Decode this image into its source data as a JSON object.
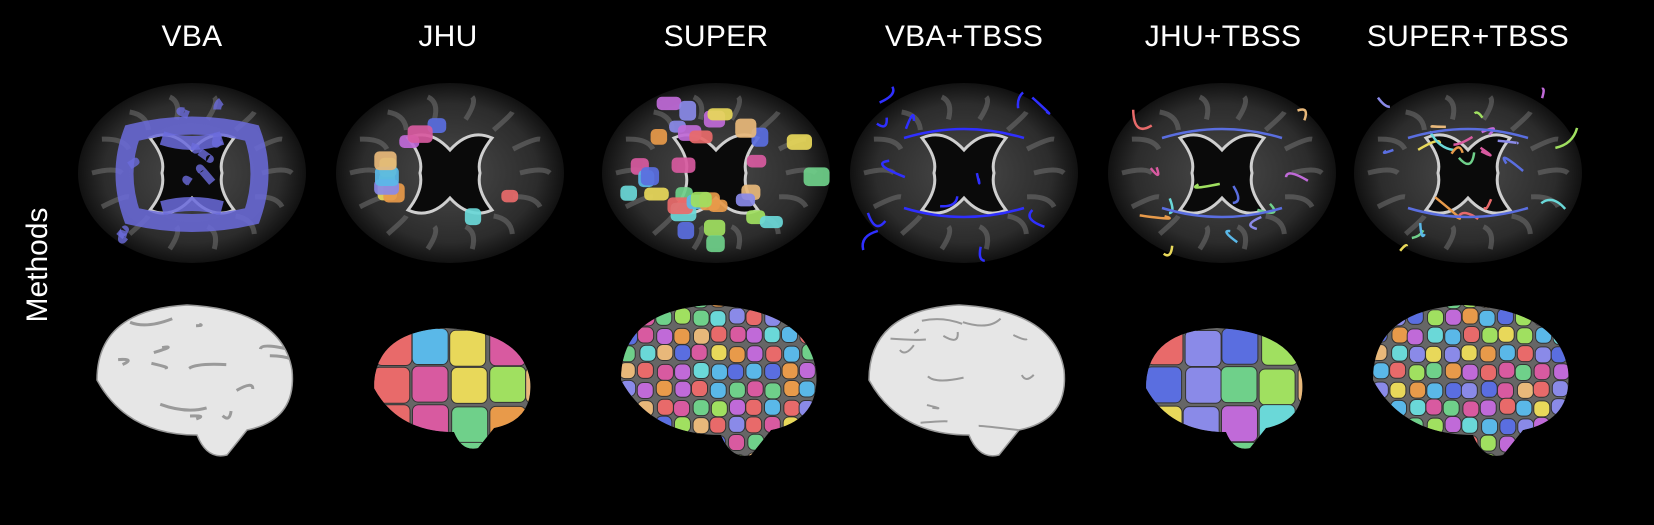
{
  "row_label": "Methods",
  "columns": [
    {
      "title": "VBA",
      "style": "blue-fill",
      "brain": "plain"
    },
    {
      "title": "JHU",
      "style": "color-regions",
      "brain": "parcel-coarse"
    },
    {
      "title": "SUPER",
      "style": "color-regions-dense",
      "brain": "parcel-fine"
    },
    {
      "title": "VBA+TBSS",
      "style": "blue-skeleton",
      "brain": "plain-rough"
    },
    {
      "title": "JHU+TBSS",
      "style": "color-skeleton",
      "brain": "parcel-coarse-rough"
    },
    {
      "title": "SUPER+TBSS",
      "style": "color-skeleton-dense",
      "brain": "parcel-fine-rough"
    }
  ],
  "colors": {
    "background": "#000000",
    "vba_blue": "#6b6bdc",
    "skeleton_blue": "#2f2fff",
    "surface_gray": "#e6e6e6",
    "parcel_palette": [
      "#c06ad8",
      "#6fd08a",
      "#e8d85a",
      "#5a6ee0",
      "#e86a6a",
      "#6ad8d8",
      "#e89a4a",
      "#a0e060",
      "#d85aa0",
      "#8a8ae8",
      "#5ab8e8",
      "#e8b87a"
    ]
  }
}
